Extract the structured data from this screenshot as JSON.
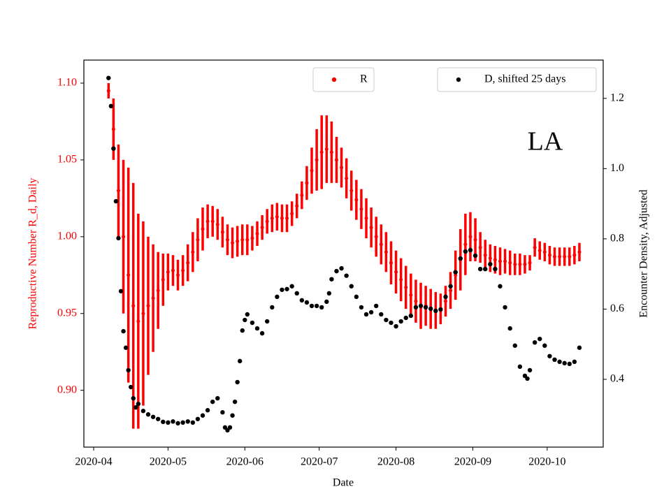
{
  "chart_data": {
    "type": "scatter",
    "annotation": "LA",
    "xlabel": "Date",
    "ylabel": "Reproductive Number R_d, Daily",
    "y2label": "Encounter Density, Adjusted",
    "xlim": [
      -3.95,
      205.6
    ],
    "xticks": [
      {
        "value": 0,
        "label": "2020-04"
      },
      {
        "value": 30,
        "label": "2020-05"
      },
      {
        "value": 61,
        "label": "2020-06"
      },
      {
        "value": 91,
        "label": "2020-07"
      },
      {
        "value": 122,
        "label": "2020-08"
      },
      {
        "value": 153,
        "label": "2020-09"
      },
      {
        "value": 183,
        "label": "2020-10"
      }
    ],
    "ylim": [
      0.863,
      1.115
    ],
    "yticks": [
      {
        "value": 0.9,
        "label": "0.90"
      },
      {
        "value": 0.95,
        "label": "0.95"
      },
      {
        "value": 1.0,
        "label": "1.00"
      },
      {
        "value": 1.05,
        "label": "1.05"
      },
      {
        "value": 1.1,
        "label": "1.10"
      }
    ],
    "y2lim": [
      0.207,
      1.309
    ],
    "y2ticks": [
      0.4,
      0.6,
      0.8,
      {
        "value": 1.0,
        "label": "1.0"
      },
      1.2
    ],
    "ylabel_color": "#ff0000",
    "series": [
      {
        "name": "R",
        "color": "#ff0000",
        "legend": "upper center",
        "x": [
          6,
          8,
          10,
          12,
          14,
          16,
          18,
          20,
          22,
          24,
          26,
          28,
          30,
          32,
          34,
          36,
          38,
          40,
          42,
          44,
          46,
          48,
          50,
          52,
          54,
          56,
          58,
          60,
          62,
          64,
          66,
          68,
          70,
          72,
          74,
          76,
          78,
          80,
          82,
          84,
          86,
          88,
          90,
          92,
          94,
          96,
          98,
          100,
          102,
          104,
          106,
          108,
          110,
          112,
          114,
          116,
          118,
          120,
          122,
          124,
          126,
          128,
          130,
          132,
          134,
          136,
          138,
          140,
          142,
          144,
          146,
          148,
          150,
          152,
          154,
          156,
          158,
          160,
          162,
          164,
          166,
          168,
          170,
          172,
          174,
          176,
          178,
          180,
          182,
          184,
          186,
          188,
          190,
          192,
          194,
          196
        ],
        "values": [
          1.095,
          1.07,
          1.03,
          1.0,
          0.975,
          0.955,
          0.945,
          0.95,
          0.955,
          0.96,
          0.965,
          0.972,
          0.977,
          0.978,
          0.975,
          0.978,
          0.983,
          0.99,
          0.998,
          1.005,
          1.01,
          1.01,
          1.008,
          1.003,
          0.998,
          0.996,
          0.997,
          0.998,
          0.998,
          0.999,
          1.002,
          1.006,
          1.01,
          1.012,
          1.013,
          1.012,
          1.012,
          1.015,
          1.02,
          1.027,
          1.035,
          1.043,
          1.05,
          1.055,
          1.057,
          1.055,
          1.05,
          1.045,
          1.038,
          1.03,
          1.024,
          1.018,
          1.012,
          1.006,
          1.0,
          0.995,
          0.99,
          0.983,
          0.977,
          0.972,
          0.967,
          0.962,
          0.958,
          0.955,
          0.955,
          0.953,
          0.952,
          0.953,
          0.958,
          0.965,
          0.975,
          0.985,
          0.995,
          1.0,
          0.998,
          0.993,
          0.988,
          0.986,
          0.985,
          0.984,
          0.984,
          0.983,
          0.982,
          0.982,
          0.982,
          0.983,
          0.993,
          0.991,
          0.99,
          0.988,
          0.987,
          0.987,
          0.987,
          0.987,
          0.988,
          0.99
        ],
        "errors": [
          0.005,
          0.02,
          0.03,
          0.05,
          0.07,
          0.08,
          0.07,
          0.06,
          0.045,
          0.035,
          0.025,
          0.017,
          0.012,
          0.01,
          0.01,
          0.01,
          0.012,
          0.013,
          0.014,
          0.014,
          0.011,
          0.01,
          0.01,
          0.01,
          0.01,
          0.01,
          0.01,
          0.01,
          0.01,
          0.008,
          0.008,
          0.008,
          0.008,
          0.009,
          0.009,
          0.009,
          0.009,
          0.008,
          0.008,
          0.009,
          0.011,
          0.015,
          0.02,
          0.024,
          0.022,
          0.02,
          0.015,
          0.013,
          0.013,
          0.013,
          0.013,
          0.013,
          0.013,
          0.013,
          0.013,
          0.013,
          0.013,
          0.014,
          0.014,
          0.014,
          0.014,
          0.014,
          0.014,
          0.015,
          0.013,
          0.013,
          0.012,
          0.01,
          0.01,
          0.012,
          0.016,
          0.02,
          0.02,
          0.016,
          0.014,
          0.01,
          0.01,
          0.009,
          0.009,
          0.009,
          0.008,
          0.008,
          0.007,
          0.007,
          0.006,
          0.005,
          0.006,
          0.006,
          0.006,
          0.006,
          0.006,
          0.006,
          0.006,
          0.006,
          0.006,
          0.006
        ]
      },
      {
        "name": "D, shifted 25 days",
        "color": "#000000",
        "axis": "y2",
        "legend": "upper right",
        "x": [
          6,
          7,
          8,
          9,
          10,
          11,
          12,
          13,
          14,
          15,
          16,
          17,
          18,
          20,
          22,
          24,
          26,
          28,
          30,
          32,
          34,
          36,
          38,
          40,
          42,
          44,
          46,
          48,
          50,
          52,
          53,
          54,
          55,
          56,
          57,
          58,
          59,
          60,
          61,
          62,
          64,
          66,
          68,
          70,
          72,
          74,
          76,
          78,
          80,
          82,
          84,
          86,
          88,
          90,
          92,
          94,
          95,
          96,
          98,
          100,
          102,
          104,
          106,
          108,
          110,
          112,
          114,
          116,
          118,
          120,
          122,
          124,
          126,
          128,
          130,
          132,
          134,
          136,
          138,
          140,
          142,
          144,
          146,
          148,
          150,
          152,
          154,
          156,
          158,
          160,
          162,
          164,
          166,
          168,
          170,
          172,
          174,
          175,
          176,
          178,
          180,
          182,
          184,
          186,
          188,
          190,
          192,
          194,
          196
        ],
        "values": [
          1.258,
          1.178,
          1.057,
          0.907,
          0.802,
          0.651,
          0.537,
          0.49,
          0.426,
          0.378,
          0.346,
          0.32,
          0.33,
          0.31,
          0.3,
          0.293,
          0.287,
          0.279,
          0.277,
          0.28,
          0.275,
          0.277,
          0.28,
          0.277,
          0.287,
          0.297,
          0.312,
          0.336,
          0.346,
          0.306,
          0.263,
          0.255,
          0.263,
          0.297,
          0.336,
          0.392,
          0.452,
          0.539,
          0.569,
          0.585,
          0.561,
          0.545,
          0.531,
          0.565,
          0.605,
          0.635,
          0.655,
          0.657,
          0.665,
          0.645,
          0.625,
          0.619,
          0.609,
          0.609,
          0.605,
          0.621,
          0.645,
          0.685,
          0.708,
          0.716,
          0.695,
          0.665,
          0.635,
          0.605,
          0.585,
          0.591,
          0.609,
          0.585,
          0.569,
          0.561,
          0.551,
          0.565,
          0.575,
          0.581,
          0.605,
          0.609,
          0.605,
          0.601,
          0.595,
          0.599,
          0.635,
          0.665,
          0.705,
          0.744,
          0.764,
          0.768,
          0.752,
          0.714,
          0.714,
          0.728,
          0.714,
          0.665,
          0.605,
          0.545,
          0.496,
          0.436,
          0.41,
          0.402,
          0.426,
          0.505,
          0.515,
          0.496,
          0.466,
          0.456,
          0.45,
          0.446,
          0.444,
          0.45,
          0.49
        ]
      }
    ]
  }
}
